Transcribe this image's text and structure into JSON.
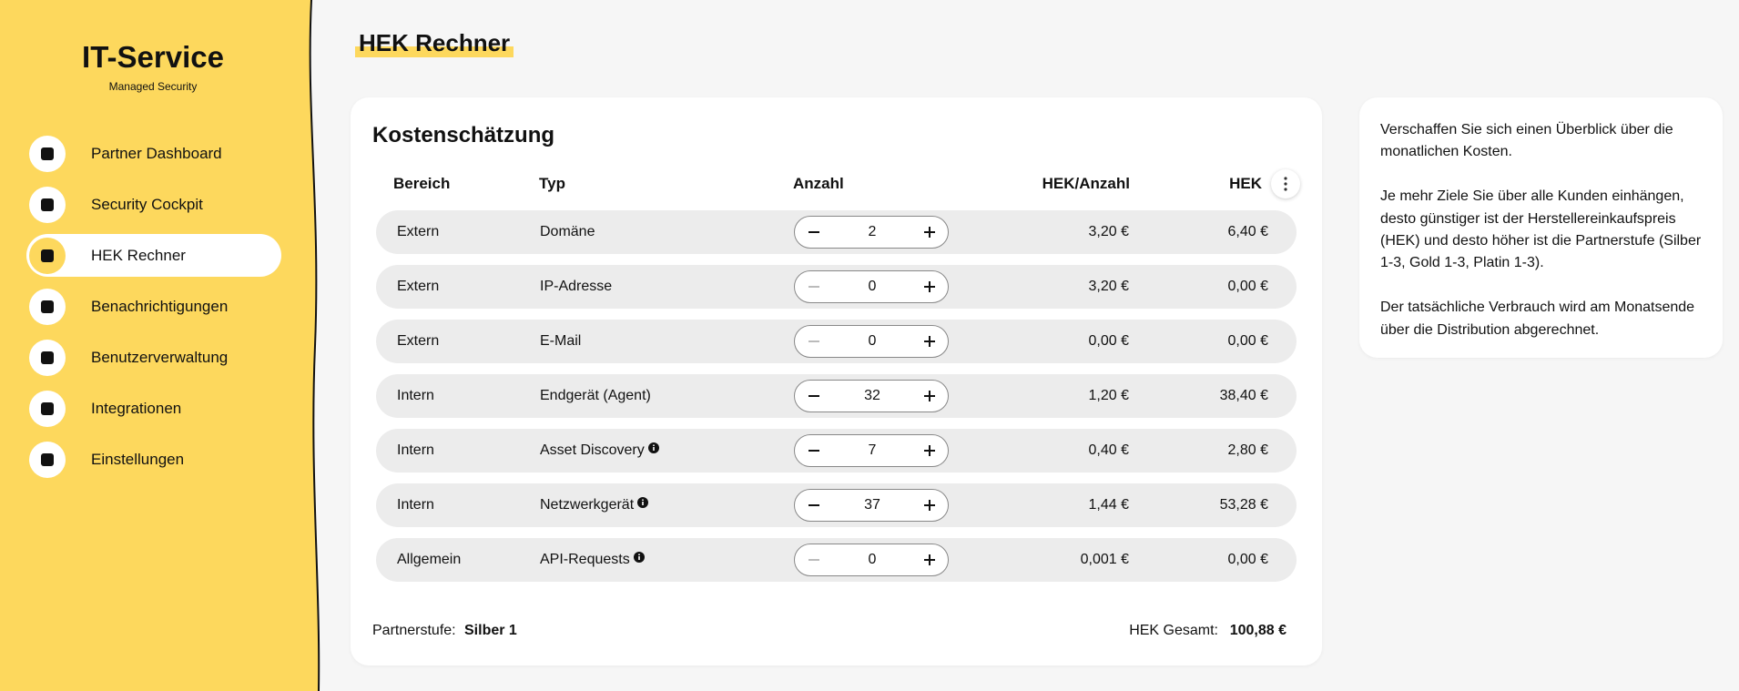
{
  "sidebar": {
    "brand": "IT-Service",
    "tagline": "Managed Security",
    "nav": [
      "Partner Dashboard",
      "Security Cockpit",
      "HEK Rechner",
      "Benachrichtigungen",
      "Benutzerverwaltung",
      "Integrationen",
      "Einstellungen"
    ],
    "active": 2
  },
  "header": {
    "title": "HEK Rechner"
  },
  "card": {
    "title": "Kostenschätzung",
    "columns": [
      "Bereich",
      "Typ",
      "Anzahl",
      "HEK/Anzahl",
      "HEK"
    ],
    "rows": [
      {
        "bereich": "Extern",
        "typ": "Domäne",
        "info": false,
        "anzahl": 2,
        "preis": "3,20 €",
        "hek": "6,40 €"
      },
      {
        "bereich": "Extern",
        "typ": "IP-Adresse",
        "info": false,
        "anzahl": 0,
        "preis": "3,20 €",
        "hek": "0,00 €"
      },
      {
        "bereich": "Extern",
        "typ": "E-Mail",
        "info": false,
        "anzahl": 0,
        "preis": "0,00 €",
        "hek": "0,00 €"
      },
      {
        "bereich": "Intern",
        "typ": "Endgerät (Agent)",
        "info": false,
        "anzahl": 32,
        "preis": "1,20 €",
        "hek": "38,40 €"
      },
      {
        "bereich": "Intern",
        "typ": "Asset Discovery",
        "info": true,
        "anzahl": 7,
        "preis": "0,40 €",
        "hek": "2,80 €"
      },
      {
        "bereich": "Intern",
        "typ": "Netzwerkgerät",
        "info": true,
        "anzahl": 37,
        "preis": "1,44 €",
        "hek": "53,28 €"
      },
      {
        "bereich": "Allgemein",
        "typ": "API-Requests",
        "info": true,
        "anzahl": 0,
        "preis": "0,001 €",
        "hek": "0,00 €"
      }
    ],
    "footer": {
      "stufe_label": "Partnerstufe:",
      "stufe": "Silber 1",
      "total_label": "HEK Gesamt:",
      "total": "100,88 €"
    }
  },
  "info": {
    "paragraphs": [
      "Verschaffen Sie sich einen Überblick über die monatlichen Kosten.",
      "Je mehr Ziele Sie über alle Kunden einhängen, desto günstiger ist der Herstellereinkaufspreis (HEK) und desto höher ist die Partnerstufe (Silber 1-3, Gold 1-3, Platin 1-3).",
      "Der tatsächliche Verbrauch wird am Monatsende über die Distribution abgerechnet."
    ]
  }
}
